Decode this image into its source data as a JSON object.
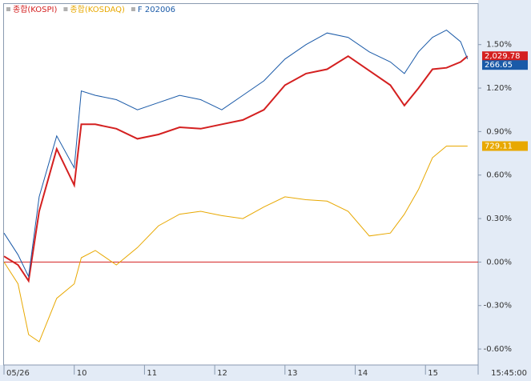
{
  "chart_data": {
    "type": "line",
    "legend": [
      "종합(KOSPI)",
      "종합(KOSDAQ)",
      "F 202006"
    ],
    "x": [
      9.0,
      9.2,
      9.35,
      9.5,
      9.75,
      10.0,
      10.1,
      10.3,
      10.6,
      10.9,
      11.2,
      11.5,
      11.8,
      12.1,
      12.4,
      12.7,
      13.0,
      13.3,
      13.6,
      13.9,
      14.2,
      14.5,
      14.7,
      14.9,
      15.1,
      15.3,
      15.5,
      15.6
    ],
    "series": [
      {
        "name": "종합(KOSPI)",
        "color": "#d42020",
        "last_label": "2,029.78",
        "values": [
          0.04,
          -0.02,
          -0.13,
          0.35,
          0.78,
          0.53,
          0.95,
          0.95,
          0.92,
          0.85,
          0.88,
          0.93,
          0.92,
          0.95,
          0.98,
          1.05,
          1.22,
          1.3,
          1.33,
          1.42,
          1.32,
          1.22,
          1.08,
          1.2,
          1.33,
          1.34,
          1.38,
          1.42
        ]
      },
      {
        "name": "종합(KOSDAQ)",
        "color": "#e8a800",
        "last_label": "729.11",
        "values": [
          0.0,
          -0.15,
          -0.5,
          -0.55,
          -0.25,
          -0.15,
          0.03,
          0.08,
          -0.02,
          0.1,
          0.25,
          0.33,
          0.35,
          0.32,
          0.3,
          0.38,
          0.45,
          0.43,
          0.42,
          0.35,
          0.18,
          0.2,
          0.33,
          0.5,
          0.72,
          0.8,
          0.8,
          0.8
        ]
      },
      {
        "name": "F 202006",
        "color": "#1a5aa8",
        "last_label": "266.65",
        "values": [
          0.2,
          0.05,
          -0.1,
          0.45,
          0.87,
          0.65,
          1.18,
          1.15,
          1.12,
          1.05,
          1.1,
          1.15,
          1.12,
          1.05,
          1.15,
          1.25,
          1.4,
          1.5,
          1.58,
          1.55,
          1.45,
          1.38,
          1.3,
          1.45,
          1.55,
          1.6,
          1.52,
          1.4
        ]
      }
    ],
    "xlim": [
      9,
      15.75
    ],
    "xticks": [
      {
        "value": 9,
        "label": "05/26"
      },
      10,
      11,
      12,
      13,
      14,
      15,
      {
        "value": 15.75,
        "label": "15:45:00"
      }
    ],
    "ylim": [
      -0.71,
      1.78
    ],
    "yticks": [
      {
        "value": 1.5,
        "label": "1.50%"
      },
      {
        "value": 1.2,
        "label": "1.20%"
      },
      {
        "value": 0.9,
        "label": "0.90%"
      },
      {
        "value": 0.6,
        "label": "0.60%"
      },
      {
        "value": 0.3,
        "label": "0.30%"
      },
      {
        "value": 0,
        "label": "0.00%"
      },
      {
        "value": -0.3,
        "label": "-0.30%"
      },
      {
        "value": -0.6,
        "label": "-0.60%"
      }
    ],
    "zero_line": 0,
    "zero_line_color": "#d42020"
  }
}
